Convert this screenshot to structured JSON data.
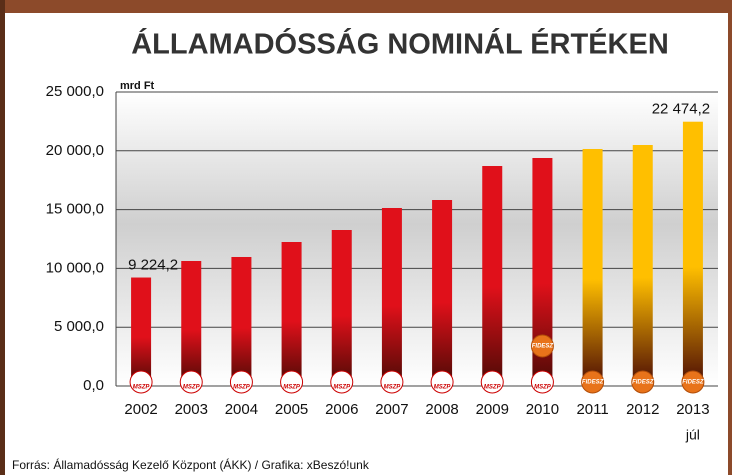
{
  "chart_data": {
    "type": "bar",
    "title": "ÁLLAMADÓSSÁG NOMINÁL ÉRTÉKEN",
    "y_unit": "mrd Ft",
    "categories": [
      "2002",
      "2003",
      "2004",
      "2005",
      "2006",
      "2007",
      "2008",
      "2009",
      "2010",
      "2011",
      "2012",
      "2013"
    ],
    "annotations": [
      "júl"
    ],
    "values": [
      9224.2,
      10630,
      10970,
      12245,
      13265,
      15136,
      15816,
      18707,
      19388,
      20153,
      20493,
      22474.2
    ],
    "value_labels": [
      "9 224,2",
      null,
      null,
      null,
      null,
      null,
      null,
      null,
      null,
      null,
      null,
      "22 474,2"
    ],
    "colors": [
      "#e0101a",
      "#e0101a",
      "#e0101a",
      "#e0101a",
      "#e0101a",
      "#e0101a",
      "#e0101a",
      "#e0101a",
      "#e0101a",
      "#ffbf00",
      "#ffbf00",
      "#ffbf00"
    ],
    "logos": [
      [
        "MSZP"
      ],
      [
        "MSZP"
      ],
      [
        "MSZP"
      ],
      [
        "MSZP"
      ],
      [
        "MSZP"
      ],
      [
        "MSZP"
      ],
      [
        "MSZP"
      ],
      [
        "MSZP"
      ],
      [
        "MSZP",
        "FIDESZ"
      ],
      [
        "FIDESZ"
      ],
      [
        "FIDESZ"
      ],
      [
        "FIDESZ"
      ]
    ],
    "ylim": [
      0,
      25000
    ],
    "yticks": [
      {
        "value": 0,
        "label": "0,0"
      },
      {
        "value": 5000,
        "label": "5 000,0"
      },
      {
        "value": 10000,
        "label": "10 000,0"
      },
      {
        "value": 15000,
        "label": "15 000,0"
      },
      {
        "value": 20000,
        "label": "20 000,0"
      },
      {
        "value": 25000,
        "label": "25 000,0"
      }
    ],
    "grid": true,
    "source": "Forrás: Államadósság Kezelő Központ (ÁKK) / Grafika: xBeszó!unk"
  }
}
